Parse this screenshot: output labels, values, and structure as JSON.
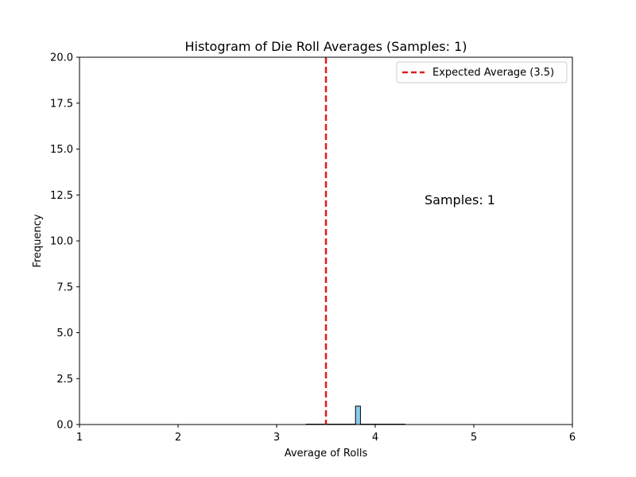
{
  "colors": {
    "bar_fill": "#87ceeb",
    "bar_edge": "#000000",
    "expected_line": "#e31a1c",
    "background": "#ffffff",
    "axes": "#000000"
  },
  "chart_data": {
    "type": "bar",
    "title": "Histogram of Die Roll Averages (Samples: 1)",
    "xlabel": "Average of Rolls",
    "ylabel": "Frequency",
    "xlim": [
      1,
      6
    ],
    "ylim": [
      0,
      20
    ],
    "x_ticks": [
      1,
      2,
      3,
      4,
      5,
      6
    ],
    "x_tick_labels": [
      "1",
      "2",
      "3",
      "4",
      "5",
      "6"
    ],
    "y_ticks": [
      0,
      2.5,
      5,
      7.5,
      10,
      12.5,
      15,
      17.5,
      20
    ],
    "y_tick_labels": [
      "0.0",
      "2.5",
      "5.0",
      "7.5",
      "10.0",
      "12.5",
      "15.0",
      "17.5",
      "20.0"
    ],
    "grid": false,
    "bins": {
      "edges_start": 3.3,
      "bin_width": 0.05,
      "counts": [
        0,
        0,
        0,
        0,
        0,
        0,
        0,
        0,
        0,
        0,
        1,
        0,
        0,
        0,
        0,
        0,
        0,
        0,
        0,
        0
      ]
    },
    "reference_line": {
      "x": 3.5,
      "style": "dashed",
      "label": "Expected Average (3.5)"
    },
    "annotation": {
      "text": "Samples: 1",
      "x": 4.5,
      "y": 12.0
    },
    "legend": {
      "placement": "top-right",
      "entries": [
        "Expected Average (3.5)"
      ]
    }
  }
}
